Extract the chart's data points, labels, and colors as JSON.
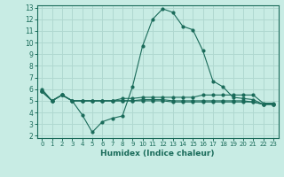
{
  "title": "",
  "xlabel": "Humidex (Indice chaleur)",
  "ylabel": "",
  "bg_color": "#c8ece4",
  "grid_color": "#b0d8d0",
  "line_color": "#1a6b5a",
  "xlim": [
    -0.5,
    23.5
  ],
  "ylim": [
    1.8,
    13.2
  ],
  "xticks": [
    0,
    1,
    2,
    3,
    4,
    5,
    6,
    7,
    8,
    9,
    10,
    11,
    12,
    13,
    14,
    15,
    16,
    17,
    18,
    19,
    20,
    21,
    22,
    23
  ],
  "yticks": [
    2,
    3,
    4,
    5,
    6,
    7,
    8,
    9,
    10,
    11,
    12,
    13
  ],
  "line1_x": [
    0,
    1,
    2,
    3,
    4,
    5,
    6,
    7,
    8,
    9,
    10,
    11,
    12,
    13,
    14,
    15,
    16,
    17,
    18,
    19,
    20,
    21,
    22,
    23
  ],
  "line1_y": [
    6.0,
    5.0,
    5.5,
    5.0,
    3.8,
    2.3,
    3.2,
    3.5,
    3.7,
    6.2,
    9.7,
    12.0,
    12.9,
    12.6,
    11.4,
    11.1,
    9.3,
    6.7,
    6.2,
    5.3,
    5.2,
    5.1,
    4.7,
    4.7
  ],
  "line2_x": [
    0,
    1,
    2,
    3,
    4,
    5,
    6,
    7,
    8,
    9,
    10,
    11,
    12,
    13,
    14,
    15,
    16,
    17,
    18,
    19,
    20,
    21,
    22,
    23
  ],
  "line2_y": [
    5.8,
    5.0,
    5.5,
    5.0,
    5.0,
    5.0,
    5.0,
    5.0,
    5.2,
    5.2,
    5.3,
    5.3,
    5.3,
    5.3,
    5.3,
    5.3,
    5.5,
    5.5,
    5.5,
    5.5,
    5.5,
    5.5,
    4.8,
    4.8
  ],
  "line3_x": [
    0,
    1,
    2,
    3,
    4,
    5,
    6,
    7,
    8,
    9,
    10,
    11,
    12,
    13,
    14,
    15,
    16,
    17,
    18,
    19,
    20,
    21,
    22,
    23
  ],
  "line3_y": [
    5.8,
    5.0,
    5.5,
    5.0,
    5.0,
    5.0,
    5.0,
    5.0,
    5.0,
    5.0,
    5.1,
    5.1,
    5.1,
    5.0,
    5.0,
    5.0,
    5.0,
    5.0,
    5.0,
    5.0,
    5.0,
    4.9,
    4.7,
    4.7
  ],
  "line4_x": [
    0,
    1,
    2,
    3,
    4,
    5,
    6,
    7,
    8,
    9,
    10,
    11,
    12,
    13,
    14,
    15,
    16,
    17,
    18,
    19,
    20,
    21,
    22,
    23
  ],
  "line4_y": [
    5.8,
    5.0,
    5.5,
    5.0,
    5.0,
    5.0,
    5.0,
    5.0,
    5.0,
    5.0,
    5.0,
    5.0,
    5.0,
    4.9,
    4.9,
    4.9,
    4.9,
    4.9,
    4.9,
    4.9,
    4.9,
    4.9,
    4.7,
    4.7
  ]
}
